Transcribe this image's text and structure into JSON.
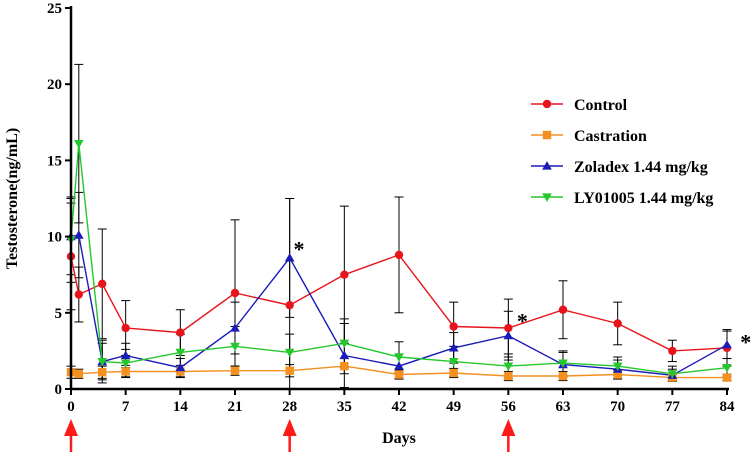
{
  "chart_data": {
    "type": "line",
    "title": "",
    "xlabel": "Days",
    "ylabel": "Testosterone(ng/mL)",
    "xlim": [
      0,
      84
    ],
    "ylim": [
      0,
      25
    ],
    "x_ticks": [
      0,
      7,
      14,
      21,
      28,
      35,
      42,
      49,
      56,
      63,
      70,
      77,
      84
    ],
    "y_ticks": [
      0,
      5,
      10,
      15,
      20,
      25
    ],
    "series": [
      {
        "name": "Control",
        "color": "#e8141b",
        "marker": "circle",
        "x": [
          0,
          1,
          4,
          7,
          14,
          21,
          28,
          35,
          42,
          49,
          56,
          63,
          70,
          77,
          84
        ],
        "y": [
          8.7,
          6.2,
          6.9,
          4.0,
          3.7,
          6.3,
          5.5,
          7.5,
          8.8,
          4.1,
          4.0,
          5.2,
          4.3,
          2.5,
          2.7
        ],
        "err": [
          3.5,
          1.8,
          3.6,
          1.8,
          1.5,
          4.8,
          7.0,
          4.5,
          3.8,
          1.6,
          1.9,
          1.9,
          1.4,
          0.7,
          1.2
        ]
      },
      {
        "name": "Castration",
        "color": "#f39020",
        "marker": "square",
        "x": [
          0,
          1,
          4,
          7,
          14,
          21,
          28,
          35,
          42,
          49,
          56,
          63,
          70,
          77,
          84
        ],
        "y": [
          1.1,
          1.0,
          1.1,
          1.15,
          1.15,
          1.2,
          1.2,
          1.5,
          0.95,
          1.05,
          0.85,
          0.85,
          0.95,
          0.75,
          0.75
        ],
        "err": [
          0.4,
          0.3,
          0.4,
          0.4,
          0.4,
          0.3,
          0.4,
          0.5,
          0.3,
          0.3,
          0.3,
          0.3,
          0.3,
          0.2,
          0.2
        ]
      },
      {
        "name": "Zoladex 1.44 mg/kg",
        "color": "#1b1bb8",
        "marker": "triangle-up",
        "x": [
          0,
          1,
          4,
          7,
          14,
          21,
          28,
          35,
          42,
          49,
          56,
          63,
          70,
          77,
          84
        ],
        "y": [
          10.0,
          10.1,
          1.8,
          2.2,
          1.4,
          4.0,
          8.6,
          2.2,
          1.5,
          2.7,
          3.5,
          1.6,
          1.3,
          0.9,
          2.9
        ],
        "err": [
          2.5,
          2.8,
          1.4,
          0.8,
          0.6,
          1.7,
          3.9,
          2.1,
          0.8,
          1.0,
          1.6,
          0.8,
          0.6,
          0.4,
          0.9
        ]
      },
      {
        "name": "LY01005 1.44 mg/kg",
        "color": "#24c82c",
        "marker": "triangle-down",
        "x": [
          0,
          1,
          4,
          7,
          14,
          21,
          28,
          35,
          42,
          49,
          56,
          63,
          70,
          77,
          84
        ],
        "y": [
          9.8,
          16.1,
          1.8,
          1.7,
          2.4,
          2.8,
          2.4,
          3.0,
          2.1,
          1.8,
          1.5,
          1.7,
          1.5,
          1.0,
          1.4
        ],
        "err": [
          2.8,
          5.2,
          1.2,
          0.9,
          1.2,
          1.3,
          1.2,
          1.6,
          1.0,
          1.0,
          0.8,
          0.8,
          0.6,
          0.5,
          0.6
        ]
      }
    ],
    "annotations": [
      {
        "text": "*",
        "x": 29.2,
        "y": 9.4
      },
      {
        "text": "*",
        "x": 57.8,
        "y": 4.7
      },
      {
        "text": "*",
        "x": 86.4,
        "y": 3.3
      }
    ],
    "arrows": {
      "color": "#ff1a1a",
      "x": [
        0,
        28,
        56
      ]
    },
    "legend_position": "right"
  }
}
